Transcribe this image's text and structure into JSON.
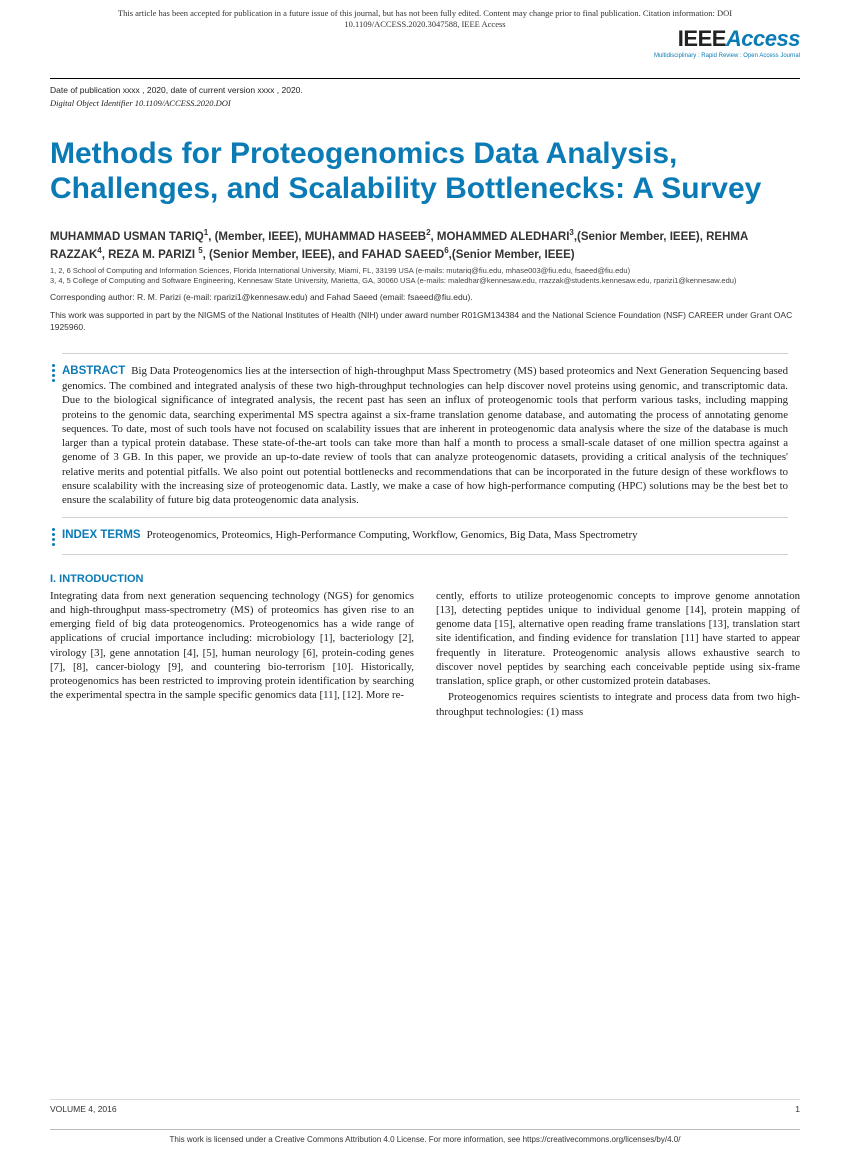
{
  "header": {
    "notice": "This article has been accepted for publication in a future issue of this journal, but has not been fully edited. Content may change prior to final publication. Citation information: DOI 10.1109/ACCESS.2020.3047588, IEEE Access",
    "logo_ieee": "IEEE",
    "logo_access": "Access",
    "logo_tag": "Multidisciplinary : Rapid Review : Open Access Journal"
  },
  "meta": {
    "pub_date": "Date of publication xxxx , 2020, date of current version xxxx , 2020.",
    "doi": "Digital Object Identifier 10.1109/ACCESS.2020.DOI"
  },
  "title": "Methods for Proteogenomics Data Analysis, Challenges, and Scalability Bottlenecks: A Survey",
  "authors_html": "MUHAMMAD USMAN TARIQ<sup>1</sup>, (Member, IEEE), MUHAMMAD HASEEB<sup>2</sup>, MOHAMMED ALEDHARI<sup>3</sup>,(Senior Member, IEEE), REHMA RAZZAK<sup>4</sup>, REZA M. PARIZI <sup>5</sup>, (Senior Member, IEEE), and FAHAD SAEED<sup>6</sup>,(Senior Member, IEEE)",
  "affiliations": {
    "a1": "1, 2, 6 School of Computing and Information Sciences, Florida International University, Miami, FL, 33199 USA (e-mails: mutariq@fiu.edu, mhase003@fiu.edu, fsaeed@fiu.edu)",
    "a2": "3, 4, 5 College of Computing and Software Engineering, Kennesaw State University, Marietta, GA, 30060 USA (e-mails: maledhar@kennesaw.edu, rrazzak@students.kennesaw.edu, rparizi1@kennesaw.edu)"
  },
  "corresponding": "Corresponding author: R. M. Parizi (e-mail: rparizi1@kennesaw.edu) and Fahad Saeed (email: fsaeed@fiu.edu).",
  "funding": "This work was supported in part by the NIGMS of the National Institutes of Health (NIH) under award number R01GM134384 and the National Science Foundation (NSF) CAREER under Grant OAC 1925960.",
  "abstract": {
    "label": "ABSTRACT",
    "text": "Big Data Proteogenomics lies at the intersection of high-throughput Mass Spectrometry (MS) based proteomics and Next Generation Sequencing based genomics. The combined and integrated analysis of these two high-throughput technologies can help discover novel proteins using genomic, and transcriptomic data. Due to the biological significance of integrated analysis, the recent past has seen an influx of proteogenomic tools that perform various tasks, including mapping proteins to the genomic data, searching experimental MS spectra against a six-frame translation genome database, and automating the process of annotating genome sequences. To date, most of such tools have not focused on scalability issues that are inherent in proteogenomic data analysis where the size of the database is much larger than a typical protein database. These state-of-the-art tools can take more than half a month to process a small-scale dataset of one million spectra against a genome of 3 GB. In this paper, we provide an up-to-date review of tools that can analyze proteogenomic datasets, providing a critical analysis of the techniques' relative merits and potential pitfalls. We also point out potential bottlenecks and recommendations that can be incorporated in the future design of these workflows to ensure scalability with the increasing size of proteogenomic data. Lastly, we make a case of how high-performance computing (HPC) solutions may be the best bet to ensure the scalability of future big data proteogenomic data analysis."
  },
  "index_terms": {
    "label": "INDEX TERMS",
    "text": "Proteogenomics, Proteomics, High-Performance Computing, Workflow, Genomics, Big Data, Mass Spectrometry"
  },
  "intro": {
    "heading": "I. INTRODUCTION",
    "col1": "Integrating data from next generation sequencing technology (NGS) for genomics and high-throughput mass-spectrometry (MS) of proteomics has given rise to an emerging field of big data proteogenomics. Proteogenomics has a wide range of applications of crucial importance including: microbiology [1], bacteriology [2], virology [3], gene annotation [4], [5], human neurology [6], protein-coding genes [7], [8], cancer-biology [9], and countering bio-terrorism [10]. Historically, proteogenomics has been restricted to improving protein identification by searching the experimental spectra in the sample specific genomics data [11], [12]. More re-",
    "col2_p1": "cently, efforts to utilize proteogenomic concepts to improve genome annotation [13], detecting peptides unique to individual genome [14], protein mapping of genome data [15], alternative open reading frame translations [13], translation start site identification, and finding evidence for translation [11] have started to appear frequently in literature. Proteogenomic analysis allows exhaustive search to discover novel peptides by searching each conceivable peptide using six-frame translation, splice graph, or other customized protein databases.",
    "col2_p2": "Proteogenomics requires scientists to integrate and process data from two high-throughput technologies: (1) mass"
  },
  "footer": {
    "volume": "VOLUME 4, 2016",
    "page": "1",
    "license": "This work is licensed under a Creative Commons Attribution 4.0 License. For more information, see https://creativecommons.org/licenses/by/4.0/"
  },
  "colors": {
    "brand": "#0b7bb5",
    "text": "#222222",
    "muted": "#444444"
  }
}
